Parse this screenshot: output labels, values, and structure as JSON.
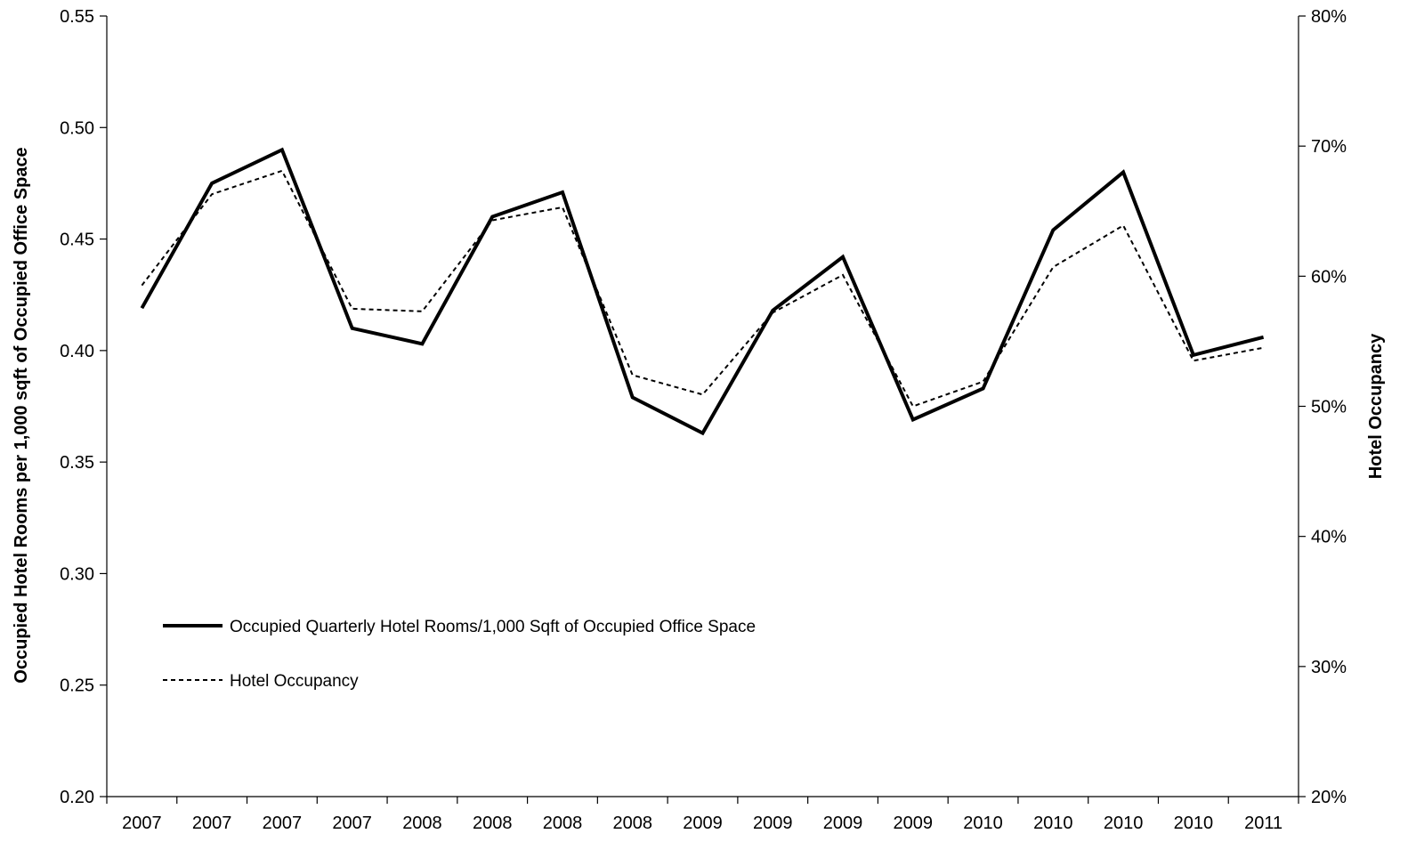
{
  "chart_data": {
    "type": "line",
    "title": "",
    "categories": [
      "2007",
      "2007",
      "2007",
      "2007",
      "2008",
      "2008",
      "2008",
      "2008",
      "2009",
      "2009",
      "2009",
      "2009",
      "2010",
      "2010",
      "2010",
      "2010",
      "2011"
    ],
    "ylabel_left": "Occupied Hotel Rooms per 1,000 sqft of Occupied Office Space",
    "ylabel_right": "Hotel Occupancy",
    "ylim_left": [
      0.2,
      0.55
    ],
    "ylim_right": [
      0.2,
      0.8
    ],
    "left_ticks": [
      "0.20",
      "0.25",
      "0.30",
      "0.35",
      "0.40",
      "0.45",
      "0.50",
      "0.55"
    ],
    "right_ticks": [
      "20%",
      "30%",
      "40%",
      "50%",
      "60%",
      "70%",
      "80%"
    ],
    "grid": false,
    "legend_position": "bottom-left",
    "series": [
      {
        "name": "Occupied Quarterly Hotel Rooms/1,000 Sqft of Occupied Office Space",
        "axis": "left",
        "style": "solid",
        "color": "#000000",
        "values": [
          0.419,
          0.475,
          0.49,
          0.41,
          0.403,
          0.46,
          0.471,
          0.379,
          0.363,
          0.418,
          0.442,
          0.369,
          0.383,
          0.454,
          0.48,
          0.398,
          0.406
        ]
      },
      {
        "name": "Hotel Occupancy",
        "axis": "right",
        "style": "dotted",
        "color": "#000000",
        "values": [
          0.593,
          0.663,
          0.681,
          0.575,
          0.573,
          0.643,
          0.653,
          0.524,
          0.509,
          0.572,
          0.601,
          0.5,
          0.519,
          0.607,
          0.639,
          0.535,
          0.545
        ]
      }
    ]
  }
}
